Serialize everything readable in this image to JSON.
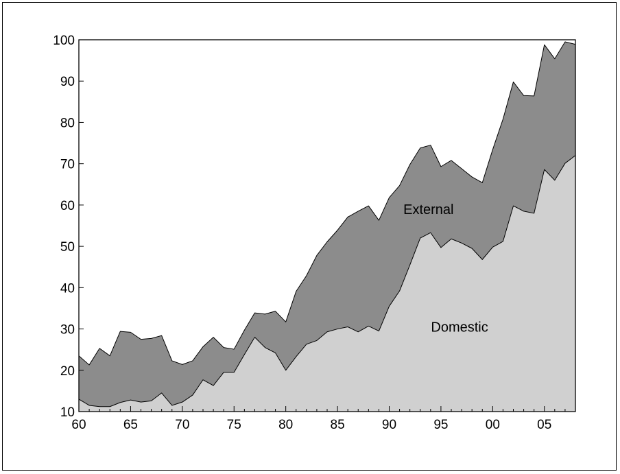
{
  "chart_data": {
    "type": "area",
    "stacked": true,
    "title": "",
    "xlabel": "",
    "ylabel": "",
    "ylim": [
      10,
      100
    ],
    "xlim": [
      1960,
      2008
    ],
    "grid": false,
    "y_ticks": [
      10,
      20,
      30,
      40,
      50,
      60,
      70,
      80,
      90,
      100
    ],
    "x_ticks": [
      1960,
      1965,
      1970,
      1975,
      1980,
      1985,
      1990,
      1995,
      2000,
      2005
    ],
    "x_tick_labels": [
      "60",
      "65",
      "70",
      "75",
      "80",
      "85",
      "90",
      "95",
      "00",
      "05"
    ],
    "x": [
      1960,
      1961,
      1962,
      1963,
      1964,
      1965,
      1966,
      1967,
      1968,
      1969,
      1970,
      1971,
      1972,
      1973,
      1974,
      1975,
      1976,
      1977,
      1978,
      1979,
      1980,
      1981,
      1982,
      1983,
      1984,
      1985,
      1986,
      1987,
      1988,
      1989,
      1990,
      1991,
      1992,
      1993,
      1994,
      1995,
      1996,
      1997,
      1998,
      1999,
      2000,
      2001,
      2002,
      2003,
      2004,
      2005,
      2006,
      2007,
      2008
    ],
    "series": [
      {
        "name": "Domestic",
        "color": "#d0d0d0",
        "values": [
          13.0,
          11.5,
          11.2,
          11.2,
          12.2,
          12.8,
          12.3,
          12.6,
          14.5,
          11.5,
          12.3,
          14.0,
          17.7,
          16.3,
          19.5,
          19.5,
          23.8,
          28.0,
          25.5,
          24.2,
          20.0,
          23.3,
          26.3,
          27.2,
          29.3,
          30.0,
          30.5,
          29.3,
          30.7,
          29.5,
          35.5,
          39.2,
          45.5,
          52.0,
          53.3,
          49.7,
          51.8,
          50.8,
          49.5,
          46.8,
          49.8,
          51.2,
          59.8,
          58.5,
          58.0,
          68.6,
          66.0,
          70.1,
          72.0
        ]
      },
      {
        "name": "External",
        "color": "#8c8c8c",
        "totals": [
          23.5,
          21.3,
          25.3,
          23.5,
          29.4,
          29.2,
          27.5,
          27.7,
          28.4,
          22.3,
          21.4,
          22.3,
          25.7,
          28.0,
          25.5,
          25.1,
          29.7,
          33.9,
          33.6,
          34.3,
          31.7,
          39.1,
          42.9,
          47.8,
          51.1,
          53.9,
          57.1,
          58.5,
          59.8,
          56.3,
          61.8,
          64.7,
          69.8,
          73.8,
          74.5,
          69.3,
          70.8,
          68.8,
          66.8,
          65.4,
          73.4,
          80.8,
          89.8,
          86.5,
          86.4,
          98.8,
          95.4,
          99.5,
          98.9
        ]
      }
    ],
    "annotations": [
      {
        "text": "External",
        "x": 1993.8,
        "y": 59
      },
      {
        "text": "Domestic",
        "x": 1996.8,
        "y": 30.5
      }
    ]
  }
}
